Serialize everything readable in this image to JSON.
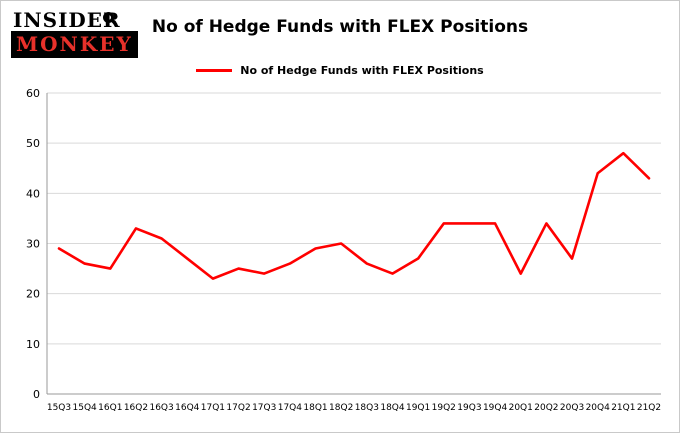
{
  "logo": {
    "line1": "INSIDER",
    "line2": "MONKEY"
  },
  "title": "No of Hedge Funds with FLEX Positions",
  "legend": {
    "label": "No of Hedge Funds with FLEX Positions",
    "color": "#ff0000"
  },
  "chart_data": {
    "type": "line",
    "title": "No of Hedge Funds with FLEX Positions",
    "xlabel": "",
    "ylabel": "",
    "ylim": [
      0,
      60
    ],
    "yticks": [
      0,
      10,
      20,
      30,
      40,
      50,
      60
    ],
    "grid": true,
    "legend_position": "top",
    "categories": [
      "15Q3",
      "15Q4",
      "16Q1",
      "16Q2",
      "16Q3",
      "16Q4",
      "17Q1",
      "17Q2",
      "17Q3",
      "17Q4",
      "18Q1",
      "18Q2",
      "18Q3",
      "18Q4",
      "19Q1",
      "19Q2",
      "19Q3",
      "19Q4",
      "20Q1",
      "20Q2",
      "20Q3",
      "20Q4",
      "21Q1",
      "21Q2"
    ],
    "series": [
      {
        "name": "No of Hedge Funds with FLEX Positions",
        "color": "#ff0000",
        "values": [
          29,
          26,
          25,
          33,
          31,
          27,
          23,
          25,
          24,
          26,
          29,
          30,
          26,
          24,
          27,
          34,
          34,
          34,
          24,
          34,
          27,
          44,
          48,
          43
        ]
      }
    ],
    "colors": {
      "gridline": "#d9d9d9",
      "axis": "#999999",
      "text": "#000000"
    }
  }
}
